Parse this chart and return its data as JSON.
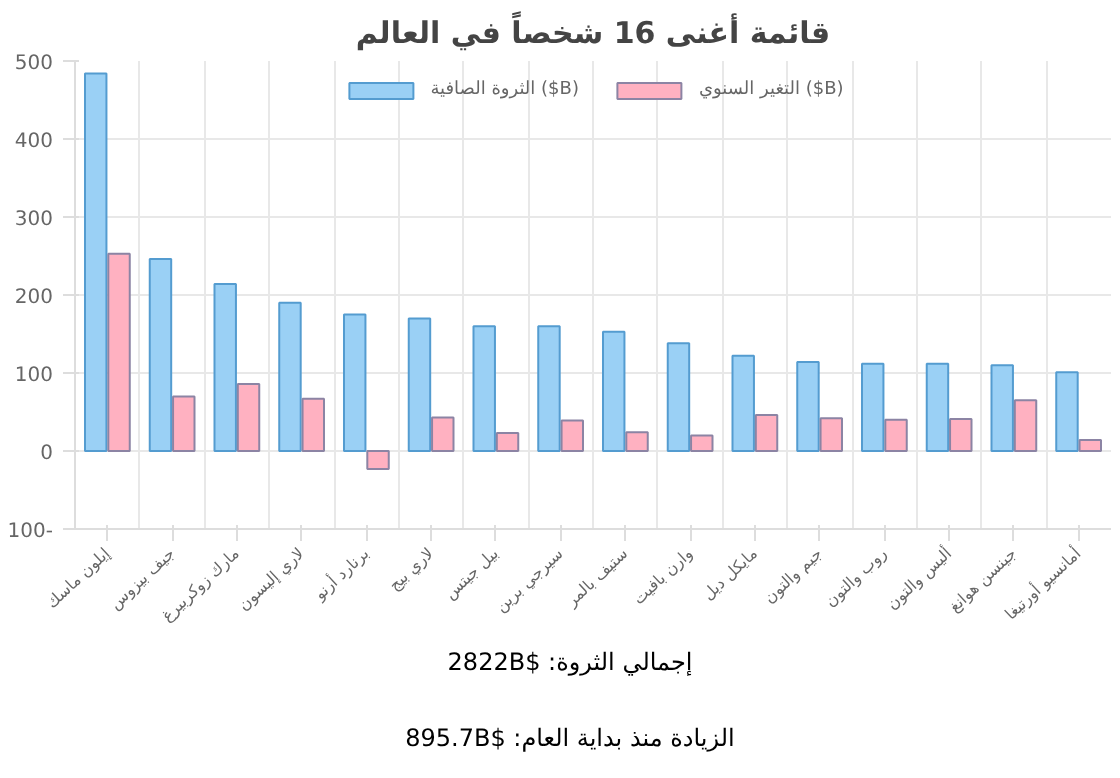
{
  "chart_data": {
    "type": "bar",
    "title": "قائمة أغنى 16 شخصاً في العالم",
    "categories": [
      "إيلون ماسك",
      "جيف بيزوس",
      "مارك زوكربيرغ",
      "لاري إليسون",
      "برنارد أرنو",
      "لاري بيج",
      "بيل جيتس",
      "سيرجي برين",
      "ستيف بالمر",
      "وارن بافيت",
      "مايكل ديل",
      "جيم والتون",
      "روب والتون",
      "أليس والتون",
      "جينسن هوانغ",
      "أمانسيو أورتيغا"
    ],
    "series": [
      {
        "name": "الثروة الصافية ($B)",
        "color": "#9ad0f5",
        "values": [
          484,
          246,
          214,
          190,
          175,
          170,
          160,
          160,
          153,
          138,
          122,
          114,
          112,
          112,
          110,
          101
        ]
      },
      {
        "name": "التغير السنوي ($B)",
        "color": "#ffb1c1",
        "values": [
          253,
          70,
          86,
          67,
          -23,
          43,
          23,
          39,
          24,
          20,
          46,
          42,
          40,
          41,
          65,
          14
        ]
      }
    ],
    "ylim": [
      -100,
      500
    ],
    "yticks": [
      {
        "value": -100,
        "label": "100-"
      },
      0,
      100,
      200,
      300,
      400,
      500
    ],
    "grid": true,
    "legend": "top",
    "annotations": [
      "إجمالي الثروة: $2822B",
      "الزيادة منذ بداية العام: $895.7B"
    ]
  }
}
